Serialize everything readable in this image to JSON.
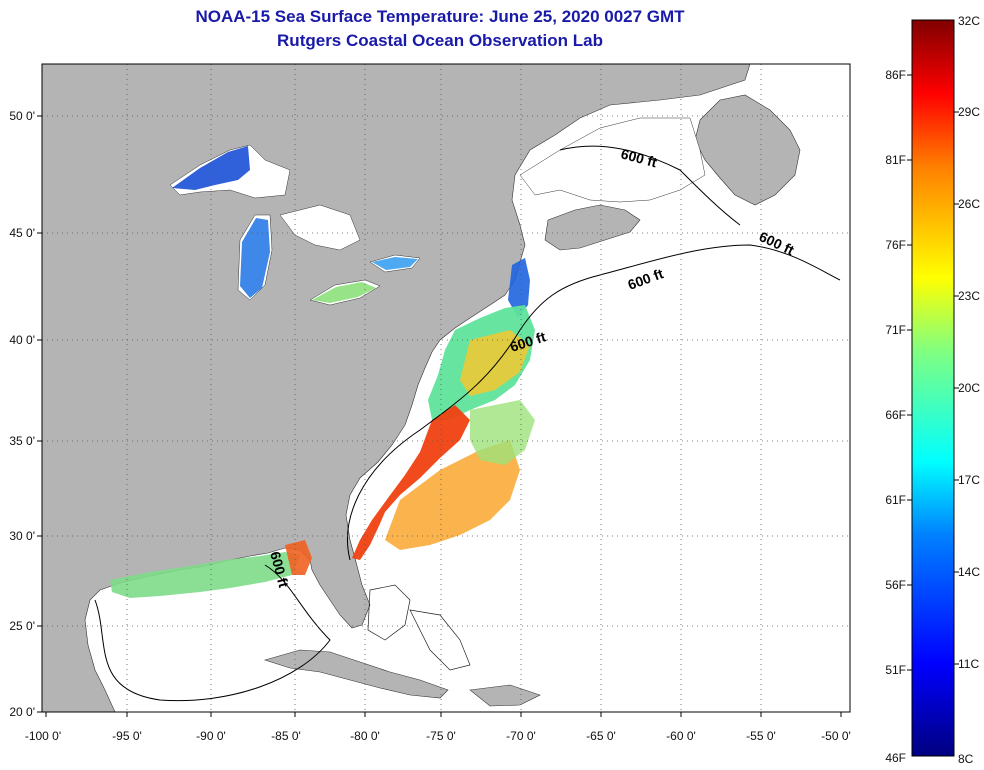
{
  "title": "NOAA-15 Sea Surface Temperature:  June 25, 2020 0027 GMT",
  "subtitle": "Rutgers Coastal Ocean Observation Lab",
  "map": {
    "lon_ticks": [
      "-100 0'",
      "-95 0'",
      "-90 0'",
      "-85 0'",
      "-80 0'",
      "-75 0'",
      "-70 0'",
      "-65 0'",
      "-60 0'",
      "-55 0'",
      "-50 0'"
    ],
    "lat_ticks": [
      "50 0'",
      "45 0'",
      "40 0'",
      "35 0'",
      "30 0'",
      "25 0'",
      "20 0'"
    ],
    "contour_labels": [
      "600 ft",
      "600 ft",
      "600 ft",
      "600 ft",
      "600 ft"
    ],
    "land_color": "#b4b4b4",
    "ocean_color": "#ffffff"
  },
  "colorbar": {
    "celsius_labels": [
      "32C",
      "29C",
      "26C",
      "23C",
      "20C",
      "17C",
      "14C",
      "11C",
      "8C"
    ],
    "fahrenheit_labels": [
      "86F",
      "81F",
      "76F",
      "71F",
      "66F",
      "61F",
      "56F",
      "51F",
      "46F"
    ],
    "range_c": [
      8,
      32
    ],
    "colors": [
      "#000080",
      "#0000ff",
      "#0080ff",
      "#00ffff",
      "#80ff80",
      "#ffff00",
      "#ff8000",
      "#ff0000",
      "#800000"
    ]
  }
}
